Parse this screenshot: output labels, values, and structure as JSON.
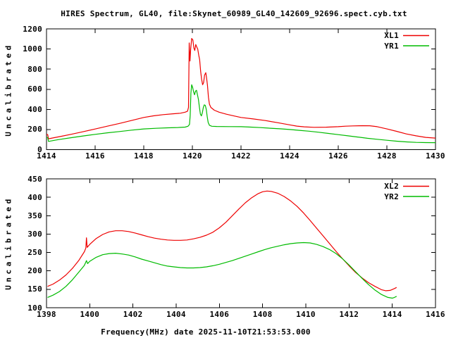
{
  "window": {
    "title_bar": "",
    "background": "#ffffff",
    "text_color": "#000000",
    "frame_color": "#000000"
  },
  "title": "HIRES Spectrum, GL40, file:Skynet_60989_GL40_142609_92696.spect.cyb.txt",
  "chart_data": [
    {
      "type": "line",
      "panel": "top",
      "ylabel": "Uncalibrated",
      "xlabel": "",
      "xlim": [
        1414,
        1430
      ],
      "ylim": [
        0,
        1200
      ],
      "xticks": [
        1414,
        1416,
        1418,
        1420,
        1422,
        1424,
        1426,
        1428,
        1430
      ],
      "yticks": [
        0,
        200,
        400,
        600,
        800,
        1000,
        1200
      ],
      "grid": false,
      "legend_position": "top-right",
      "series": [
        {
          "name": "XL1",
          "color": "#ee0000",
          "points": [
            [
              1414.0,
              152
            ],
            [
              1414.05,
              150
            ],
            [
              1414.08,
              108
            ],
            [
              1414.3,
              118
            ],
            [
              1414.6,
              132
            ],
            [
              1415.0,
              152
            ],
            [
              1415.5,
              178
            ],
            [
              1416.0,
              205
            ],
            [
              1416.5,
              233
            ],
            [
              1417.0,
              260
            ],
            [
              1417.5,
              290
            ],
            [
              1418.0,
              320
            ],
            [
              1418.4,
              336
            ],
            [
              1418.8,
              348
            ],
            [
              1419.2,
              356
            ],
            [
              1419.5,
              362
            ],
            [
              1419.7,
              372
            ],
            [
              1419.8,
              382
            ],
            [
              1419.84,
              420
            ],
            [
              1419.87,
              1060
            ],
            [
              1419.9,
              880
            ],
            [
              1419.93,
              1000
            ],
            [
              1419.97,
              1105
            ],
            [
              1420.02,
              1090
            ],
            [
              1420.06,
              1010
            ],
            [
              1420.1,
              985
            ],
            [
              1420.14,
              1045
            ],
            [
              1420.18,
              1020
            ],
            [
              1420.22,
              1000
            ],
            [
              1420.26,
              940
            ],
            [
              1420.3,
              895
            ],
            [
              1420.34,
              780
            ],
            [
              1420.38,
              700
            ],
            [
              1420.42,
              645
            ],
            [
              1420.46,
              665
            ],
            [
              1420.5,
              740
            ],
            [
              1420.55,
              765
            ],
            [
              1420.58,
              720
            ],
            [
              1420.62,
              640
            ],
            [
              1420.66,
              520
            ],
            [
              1420.7,
              452
            ],
            [
              1420.76,
              420
            ],
            [
              1420.9,
              392
            ],
            [
              1421.1,
              372
            ],
            [
              1421.4,
              352
            ],
            [
              1421.7,
              335
            ],
            [
              1422.0,
              320
            ],
            [
              1422.5,
              305
            ],
            [
              1423.0,
              289
            ],
            [
              1423.5,
              268
            ],
            [
              1424.0,
              246
            ],
            [
              1424.3,
              234
            ],
            [
              1424.6,
              227
            ],
            [
              1425.0,
              222
            ],
            [
              1425.5,
              223
            ],
            [
              1426.0,
              228
            ],
            [
              1426.3,
              233
            ],
            [
              1426.6,
              236
            ],
            [
              1427.0,
              238
            ],
            [
              1427.3,
              237
            ],
            [
              1427.6,
              228
            ],
            [
              1428.0,
              206
            ],
            [
              1428.4,
              182
            ],
            [
              1428.8,
              156
            ],
            [
              1429.2,
              137
            ],
            [
              1429.6,
              122
            ],
            [
              1430.0,
              115
            ]
          ]
        },
        {
          "name": "YR1",
          "color": "#00bb00",
          "points": [
            [
              1414.0,
              122
            ],
            [
              1414.05,
              120
            ],
            [
              1414.08,
              82
            ],
            [
              1414.5,
              100
            ],
            [
              1415.0,
              118
            ],
            [
              1415.5,
              136
            ],
            [
              1416.0,
              152
            ],
            [
              1416.5,
              167
            ],
            [
              1417.0,
              180
            ],
            [
              1417.5,
              194
            ],
            [
              1418.0,
              206
            ],
            [
              1418.5,
              212
            ],
            [
              1419.0,
              217
            ],
            [
              1419.4,
              220
            ],
            [
              1419.7,
              224
            ],
            [
              1419.82,
              232
            ],
            [
              1419.88,
              250
            ],
            [
              1419.91,
              340
            ],
            [
              1419.94,
              560
            ],
            [
              1419.97,
              645
            ],
            [
              1420.01,
              620
            ],
            [
              1420.05,
              575
            ],
            [
              1420.09,
              545
            ],
            [
              1420.13,
              582
            ],
            [
              1420.17,
              590
            ],
            [
              1420.21,
              545
            ],
            [
              1420.25,
              498
            ],
            [
              1420.29,
              420
            ],
            [
              1420.33,
              352
            ],
            [
              1420.37,
              335
            ],
            [
              1420.41,
              365
            ],
            [
              1420.45,
              418
            ],
            [
              1420.49,
              445
            ],
            [
              1420.53,
              440
            ],
            [
              1420.57,
              400
            ],
            [
              1420.61,
              330
            ],
            [
              1420.65,
              270
            ],
            [
              1420.7,
              242
            ],
            [
              1420.8,
              232
            ],
            [
              1421.0,
              230
            ],
            [
              1421.5,
              229
            ],
            [
              1422.0,
              228
            ],
            [
              1422.4,
              224
            ],
            [
              1422.8,
              219
            ],
            [
              1423.2,
              213
            ],
            [
              1423.6,
              207
            ],
            [
              1424.0,
              200
            ],
            [
              1424.4,
              192
            ],
            [
              1424.8,
              183
            ],
            [
              1425.2,
              173
            ],
            [
              1425.6,
              161
            ],
            [
              1426.0,
              149
            ],
            [
              1426.4,
              137
            ],
            [
              1426.8,
              125
            ],
            [
              1427.2,
              113
            ],
            [
              1427.6,
              103
            ],
            [
              1428.0,
              93
            ],
            [
              1428.4,
              84
            ],
            [
              1428.8,
              77
            ],
            [
              1429.2,
              72
            ],
            [
              1429.6,
              70
            ],
            [
              1430.0,
              69
            ]
          ]
        }
      ]
    },
    {
      "type": "line",
      "panel": "bottom",
      "ylabel": "Uncalibrated",
      "xlabel": "Frequency(MHz) date 2025-11-10T21:53:53.000",
      "xlim": [
        1398,
        1416
      ],
      "ylim": [
        100,
        450
      ],
      "xticks": [
        1398,
        1400,
        1402,
        1404,
        1406,
        1408,
        1410,
        1412,
        1414,
        1416
      ],
      "yticks": [
        100,
        150,
        200,
        250,
        300,
        350,
        400,
        450
      ],
      "grid": false,
      "legend_position": "top-right",
      "series": [
        {
          "name": "XL2",
          "color": "#ee0000",
          "points": [
            [
              1398.05,
              158
            ],
            [
              1398.3,
              164
            ],
            [
              1398.6,
              175
            ],
            [
              1398.9,
              189
            ],
            [
              1399.2,
              207
            ],
            [
              1399.5,
              229
            ],
            [
              1399.75,
              252
            ],
            [
              1399.82,
              262
            ],
            [
              1399.85,
              290
            ],
            [
              1399.88,
              264
            ],
            [
              1400.0,
              272
            ],
            [
              1400.3,
              288
            ],
            [
              1400.6,
              299
            ],
            [
              1400.9,
              306
            ],
            [
              1401.2,
              309
            ],
            [
              1401.5,
              309
            ],
            [
              1401.8,
              307
            ],
            [
              1402.1,
              303
            ],
            [
              1402.4,
              298
            ],
            [
              1402.7,
              293
            ],
            [
              1403.0,
              289
            ],
            [
              1403.3,
              286
            ],
            [
              1403.6,
              284
            ],
            [
              1403.9,
              283
            ],
            [
              1404.2,
              283
            ],
            [
              1404.5,
              284
            ],
            [
              1404.8,
              287
            ],
            [
              1405.1,
              291
            ],
            [
              1405.4,
              297
            ],
            [
              1405.7,
              305
            ],
            [
              1406.0,
              317
            ],
            [
              1406.3,
              332
            ],
            [
              1406.6,
              350
            ],
            [
              1406.9,
              368
            ],
            [
              1407.2,
              385
            ],
            [
              1407.5,
              399
            ],
            [
              1407.8,
              410
            ],
            [
              1408.0,
              415
            ],
            [
              1408.2,
              417
            ],
            [
              1408.4,
              416
            ],
            [
              1408.7,
              411
            ],
            [
              1409.0,
              402
            ],
            [
              1409.3,
              390
            ],
            [
              1409.6,
              375
            ],
            [
              1409.9,
              357
            ],
            [
              1410.2,
              337
            ],
            [
              1410.5,
              316
            ],
            [
              1410.8,
              295
            ],
            [
              1411.1,
              274
            ],
            [
              1411.4,
              253
            ],
            [
              1411.7,
              233
            ],
            [
              1412.0,
              214
            ],
            [
              1412.3,
              196
            ],
            [
              1412.6,
              181
            ],
            [
              1412.9,
              168
            ],
            [
              1413.2,
              158
            ],
            [
              1413.5,
              149
            ],
            [
              1413.7,
              146
            ],
            [
              1413.9,
              147
            ],
            [
              1414.1,
              152
            ],
            [
              1414.2,
              155
            ]
          ]
        },
        {
          "name": "YR2",
          "color": "#00bb00",
          "points": [
            [
              1398.05,
              128
            ],
            [
              1398.3,
              134
            ],
            [
              1398.6,
              144
            ],
            [
              1398.9,
              158
            ],
            [
              1399.2,
              176
            ],
            [
              1399.5,
              197
            ],
            [
              1399.75,
              215
            ],
            [
              1399.85,
              228
            ],
            [
              1399.9,
              220
            ],
            [
              1400.0,
              226
            ],
            [
              1400.3,
              237
            ],
            [
              1400.6,
              244
            ],
            [
              1400.9,
              247
            ],
            [
              1401.2,
              248
            ],
            [
              1401.5,
              246
            ],
            [
              1401.8,
              243
            ],
            [
              1402.1,
              238
            ],
            [
              1402.4,
              232
            ],
            [
              1402.7,
              227
            ],
            [
              1403.0,
              222
            ],
            [
              1403.3,
              217
            ],
            [
              1403.6,
              213
            ],
            [
              1403.9,
              211
            ],
            [
              1404.2,
              209
            ],
            [
              1404.5,
              208
            ],
            [
              1404.8,
              208
            ],
            [
              1405.1,
              209
            ],
            [
              1405.4,
              211
            ],
            [
              1405.7,
              214
            ],
            [
              1406.0,
              218
            ],
            [
              1406.3,
              223
            ],
            [
              1406.6,
              228
            ],
            [
              1406.9,
              234
            ],
            [
              1407.2,
              240
            ],
            [
              1407.5,
              246
            ],
            [
              1407.8,
              252
            ],
            [
              1408.1,
              258
            ],
            [
              1408.4,
              263
            ],
            [
              1408.7,
              267
            ],
            [
              1409.0,
              271
            ],
            [
              1409.3,
              274
            ],
            [
              1409.6,
              276
            ],
            [
              1409.9,
              277
            ],
            [
              1410.2,
              276
            ],
            [
              1410.5,
              272
            ],
            [
              1410.8,
              266
            ],
            [
              1411.1,
              258
            ],
            [
              1411.4,
              247
            ],
            [
              1411.7,
              233
            ],
            [
              1412.0,
              216
            ],
            [
              1412.3,
              198
            ],
            [
              1412.6,
              180
            ],
            [
              1412.9,
              163
            ],
            [
              1413.2,
              148
            ],
            [
              1413.5,
              136
            ],
            [
              1413.8,
              128
            ],
            [
              1414.0,
              126
            ],
            [
              1414.1,
              128
            ],
            [
              1414.2,
              131
            ]
          ]
        }
      ]
    }
  ]
}
